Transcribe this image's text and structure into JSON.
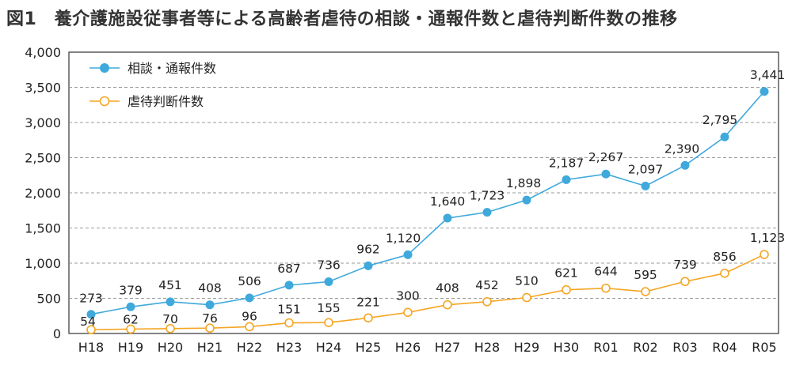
{
  "chart_data": {
    "type": "line",
    "title": "図1　養介護施設従事者等による高齢者虐待の相談・通報件数と虐待判断件数の推移",
    "categories": [
      "H18",
      "H19",
      "H20",
      "H21",
      "H22",
      "H23",
      "H24",
      "H25",
      "H26",
      "H27",
      "H28",
      "H29",
      "H30",
      "R01",
      "R02",
      "R03",
      "R04",
      "R05"
    ],
    "y_ticks": [
      "0",
      "500",
      "1,000",
      "1,500",
      "2,000",
      "2,500",
      "3,000",
      "3,500",
      "4,000"
    ],
    "ylim": [
      0,
      4000
    ],
    "grid": "horizontal dashed",
    "legend_position": "top-left",
    "series": [
      {
        "name": "相談・通報件数",
        "color": "#3fa9dc",
        "marker": "filled-circle",
        "values": [
          273,
          379,
          451,
          408,
          506,
          687,
          736,
          962,
          1120,
          1640,
          1723,
          1898,
          2187,
          2267,
          2097,
          2390,
          2795,
          3441
        ],
        "labels": [
          "273",
          "379",
          "451",
          "408",
          "506",
          "687",
          "736",
          "962",
          "1,120",
          "1,640",
          "1,723",
          "1,898",
          "2,187",
          "2,267",
          "2,097",
          "2,390",
          "2,795",
          "3,441"
        ]
      },
      {
        "name": "虐待判断件数",
        "color": "#f5a623",
        "marker": "hollow-circle",
        "values": [
          54,
          62,
          70,
          76,
          96,
          151,
          155,
          221,
          300,
          408,
          452,
          510,
          621,
          644,
          595,
          739,
          856,
          1123
        ],
        "labels": [
          "54",
          "62",
          "70",
          "76",
          "96",
          "151",
          "155",
          "221",
          "300",
          "408",
          "452",
          "510",
          "621",
          "644",
          "595",
          "739",
          "856",
          "1,123"
        ]
      }
    ]
  }
}
